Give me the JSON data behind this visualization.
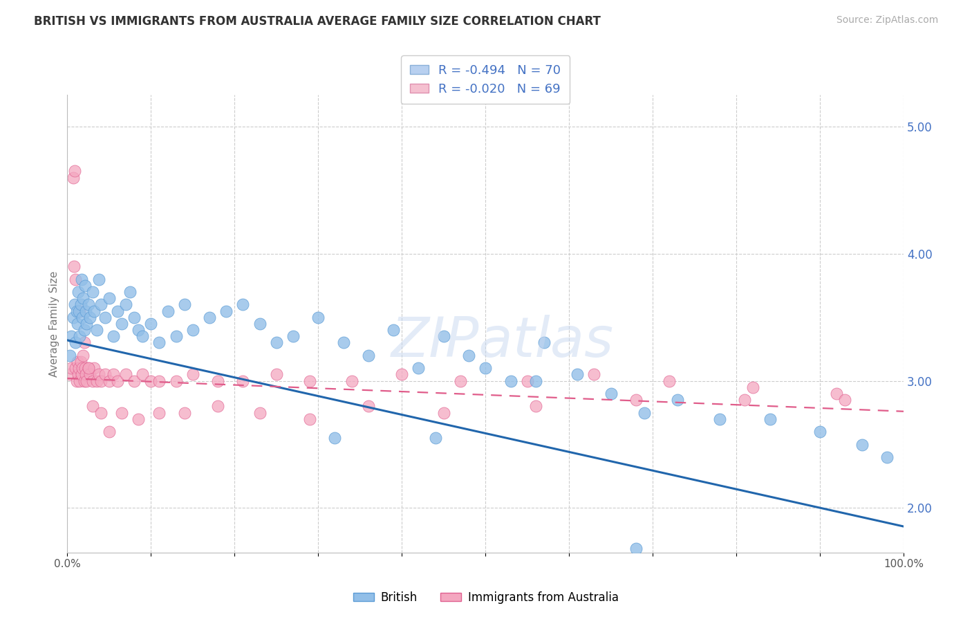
{
  "title": "BRITISH VS IMMIGRANTS FROM AUSTRALIA AVERAGE FAMILY SIZE CORRELATION CHART",
  "source_text": "Source: ZipAtlas.com",
  "ylabel": "Average Family Size",
  "watermark": "ZIPatlas",
  "xlim": [
    0,
    100
  ],
  "ylim": [
    1.65,
    5.25
  ],
  "right_yticks": [
    2.0,
    3.0,
    4.0,
    5.0
  ],
  "british_color": "#92bfe8",
  "british_edge": "#5b9bd5",
  "australia_color": "#f4a7c0",
  "australia_edge": "#e06090",
  "trendline_british_color": "#2166ac",
  "trendline_australia_color": "#e05c8a",
  "british_intercept": 3.32,
  "british_slope": -0.01465,
  "australia_intercept": 3.02,
  "australia_slope": -0.0026,
  "british_x": [
    0.3,
    0.5,
    0.7,
    0.9,
    1.0,
    1.1,
    1.2,
    1.3,
    1.4,
    1.5,
    1.6,
    1.7,
    1.8,
    1.9,
    2.0,
    2.1,
    2.2,
    2.3,
    2.5,
    2.7,
    3.0,
    3.2,
    3.5,
    3.8,
    4.0,
    4.5,
    5.0,
    5.5,
    6.0,
    6.5,
    7.0,
    7.5,
    8.0,
    8.5,
    9.0,
    10.0,
    11.0,
    12.0,
    13.0,
    14.0,
    15.0,
    17.0,
    19.0,
    21.0,
    23.0,
    25.0,
    27.0,
    30.0,
    33.0,
    36.0,
    39.0,
    42.0,
    45.0,
    48.0,
    50.0,
    53.0,
    57.0,
    61.0,
    65.0,
    69.0,
    73.0,
    78.0,
    84.0,
    90.0,
    95.0,
    98.0,
    32.0,
    44.0,
    56.0,
    68.0
  ],
  "british_y": [
    3.2,
    3.35,
    3.5,
    3.6,
    3.3,
    3.55,
    3.45,
    3.7,
    3.55,
    3.35,
    3.6,
    3.8,
    3.5,
    3.65,
    3.4,
    3.75,
    3.55,
    3.45,
    3.6,
    3.5,
    3.7,
    3.55,
    3.4,
    3.8,
    3.6,
    3.5,
    3.65,
    3.35,
    3.55,
    3.45,
    3.6,
    3.7,
    3.5,
    3.4,
    3.35,
    3.45,
    3.3,
    3.55,
    3.35,
    3.6,
    3.4,
    3.5,
    3.55,
    3.6,
    3.45,
    3.3,
    3.35,
    3.5,
    3.3,
    3.2,
    3.4,
    3.1,
    3.35,
    3.2,
    3.1,
    3.0,
    3.3,
    3.05,
    2.9,
    2.75,
    2.85,
    2.7,
    2.7,
    2.6,
    2.5,
    2.4,
    2.55,
    2.55,
    3.0,
    1.68
  ],
  "australia_x": [
    0.3,
    0.5,
    0.7,
    0.9,
    1.0,
    1.1,
    1.2,
    1.3,
    1.4,
    1.5,
    1.6,
    1.7,
    1.8,
    1.9,
    2.0,
    2.1,
    2.2,
    2.3,
    2.5,
    2.7,
    3.0,
    3.2,
    3.5,
    3.8,
    4.0,
    4.5,
    5.0,
    5.5,
    6.0,
    7.0,
    8.0,
    9.0,
    10.0,
    11.0,
    13.0,
    15.0,
    18.0,
    21.0,
    25.0,
    29.0,
    34.0,
    40.0,
    47.0,
    55.0,
    63.0,
    72.0,
    82.0,
    92.0,
    0.8,
    1.0,
    1.5,
    2.0,
    2.5,
    3.0,
    4.0,
    5.0,
    6.5,
    8.5,
    11.0,
    14.0,
    18.0,
    23.0,
    29.0,
    36.0,
    45.0,
    56.0,
    68.0,
    81.0,
    93.0
  ],
  "australia_y": [
    3.05,
    3.1,
    4.6,
    4.65,
    3.1,
    3.0,
    3.15,
    3.05,
    3.1,
    3.0,
    3.15,
    3.05,
    3.1,
    3.2,
    3.0,
    3.1,
    3.05,
    3.0,
    3.1,
    3.05,
    3.0,
    3.1,
    3.0,
    3.05,
    3.0,
    3.05,
    3.0,
    3.05,
    3.0,
    3.05,
    3.0,
    3.05,
    3.0,
    3.0,
    3.0,
    3.05,
    3.0,
    3.0,
    3.05,
    3.0,
    3.0,
    3.05,
    3.0,
    3.0,
    3.05,
    3.0,
    2.95,
    2.9,
    3.9,
    3.8,
    3.55,
    3.3,
    3.1,
    2.8,
    2.75,
    2.6,
    2.75,
    2.7,
    2.75,
    2.75,
    2.8,
    2.75,
    2.7,
    2.8,
    2.75,
    2.8,
    2.85,
    2.85,
    2.85
  ]
}
